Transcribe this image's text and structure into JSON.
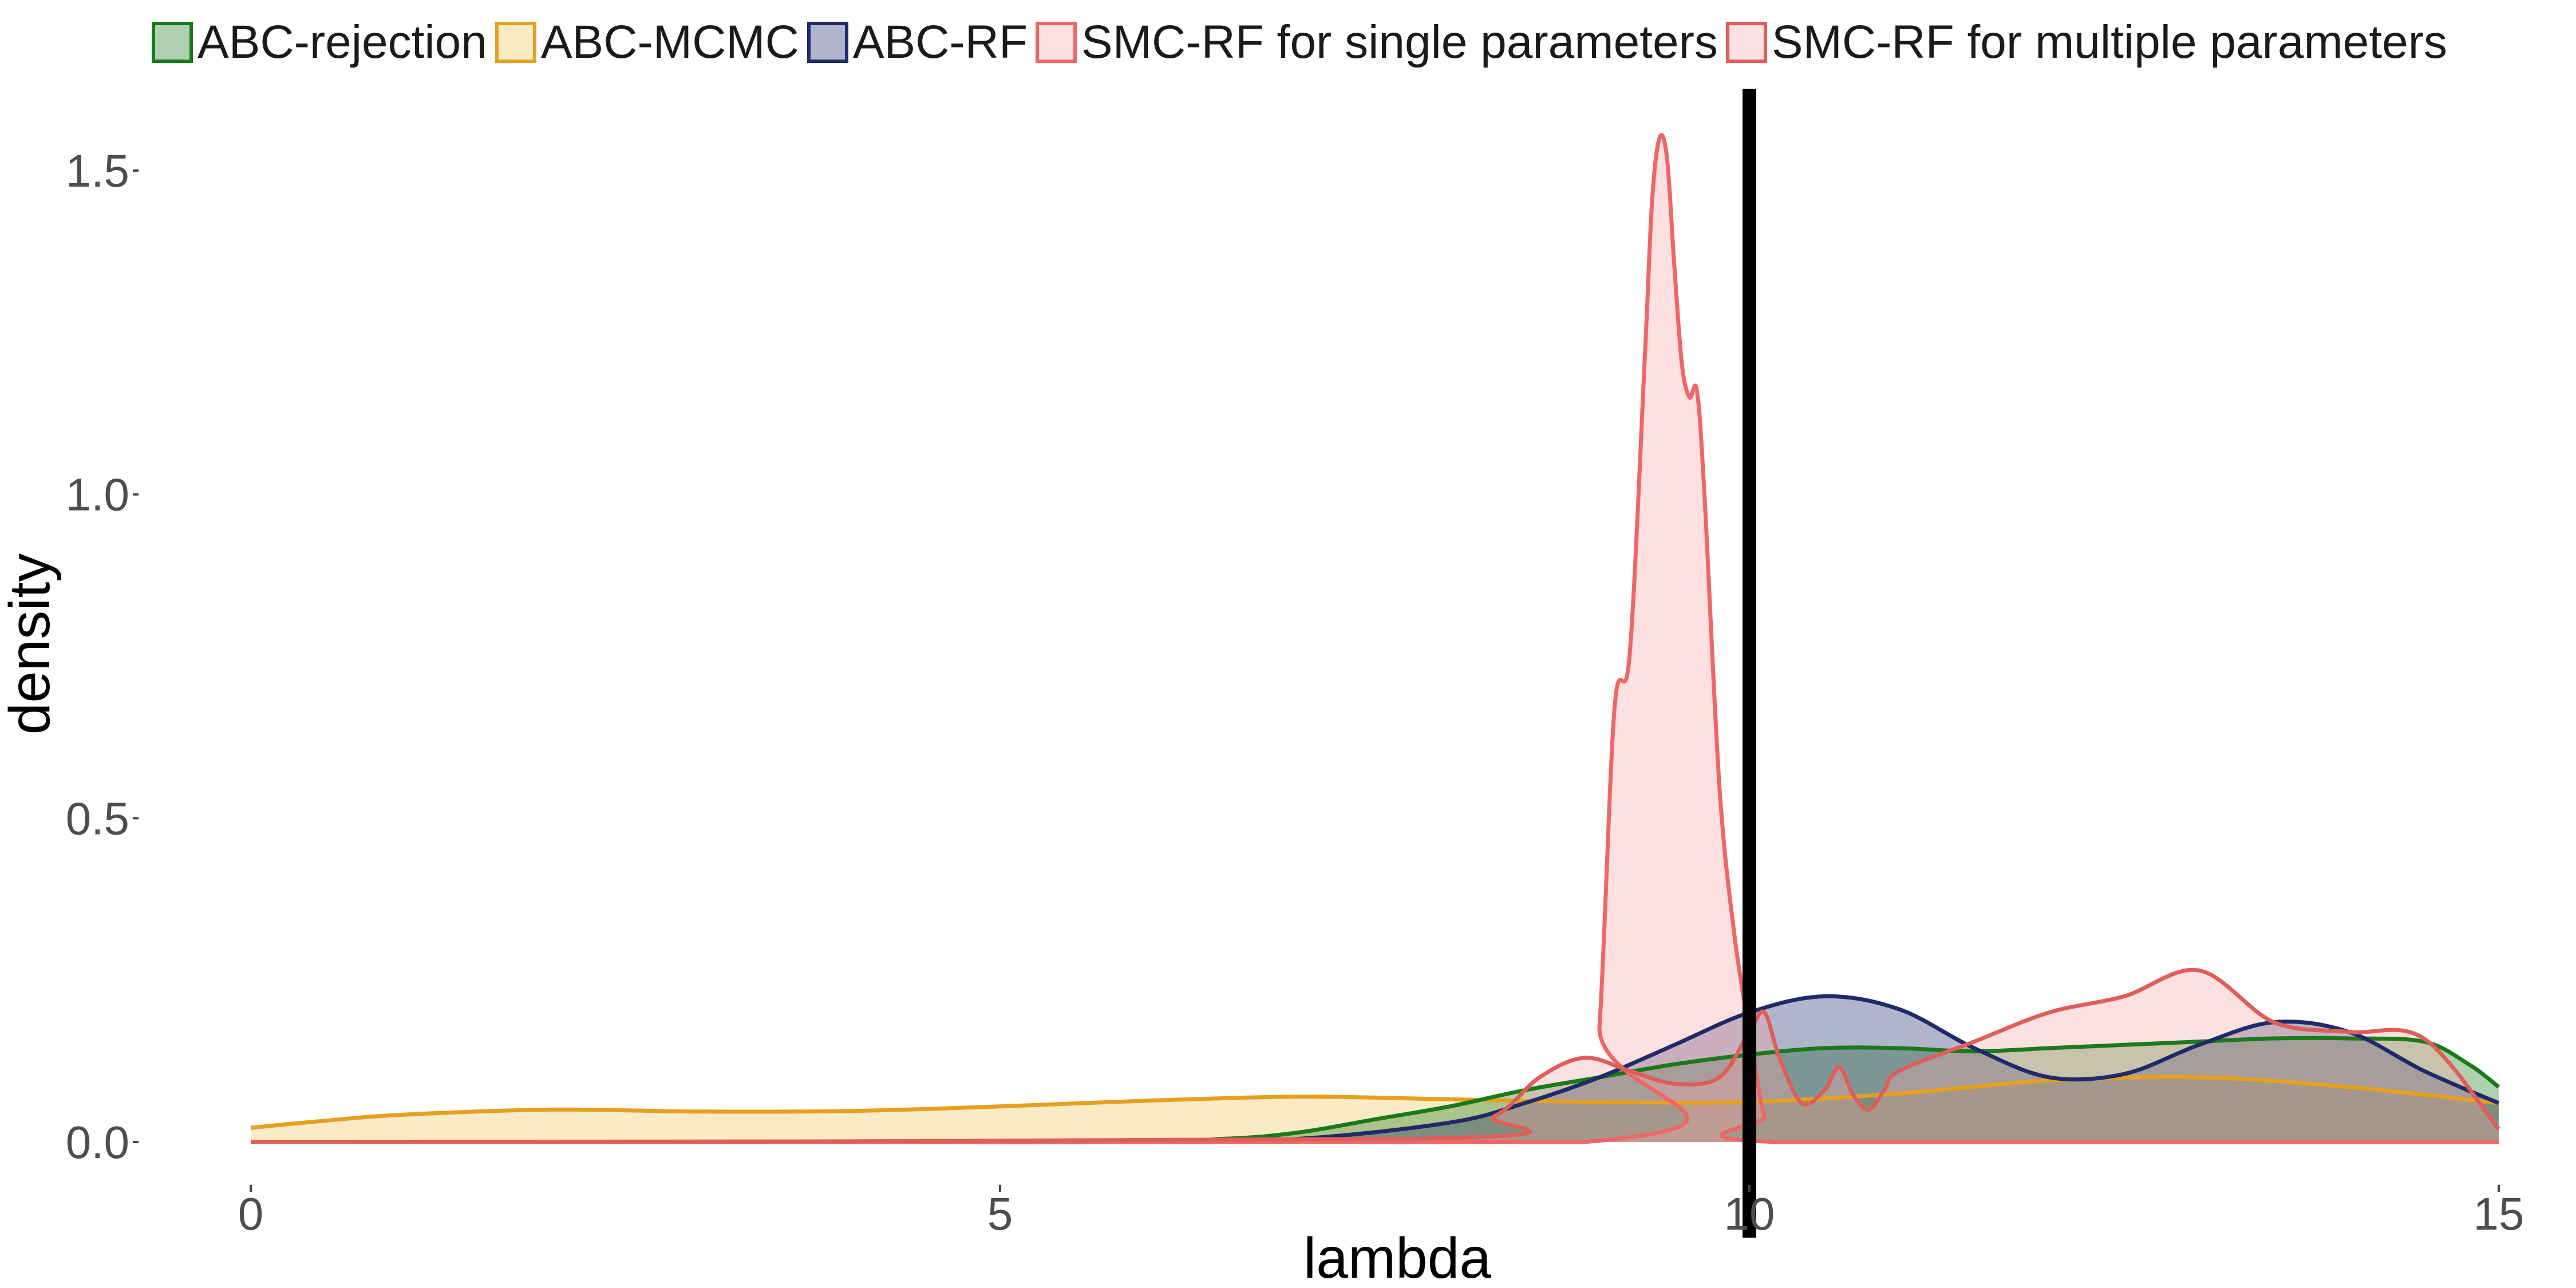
{
  "chart_data": {
    "type": "area",
    "xlabel": "lambda",
    "ylabel": "density",
    "xlim": [
      0,
      15
    ],
    "ylim": [
      0,
      1.6
    ],
    "xticks": [
      "0",
      "5",
      "10",
      "15"
    ],
    "yticks": [
      "0.0",
      "0.5",
      "1.0",
      "1.5"
    ],
    "grid": false,
    "legend_position": "top",
    "reference_line": {
      "x": 10,
      "color": "#000000"
    },
    "series": [
      {
        "name": "ABC-rejection",
        "stroke": "#1a7a1a",
        "fill": "#1a7a1a",
        "x": [
          0,
          5.5,
          6.5,
          7.0,
          7.5,
          8.0,
          8.5,
          9.0,
          9.5,
          10.0,
          10.5,
          11.0,
          11.5,
          12.0,
          12.5,
          13.0,
          13.5,
          14.0,
          14.5,
          14.8,
          15.0
        ],
        "y": [
          0,
          0,
          0.005,
          0.015,
          0.035,
          0.055,
          0.08,
          0.1,
          0.12,
          0.135,
          0.145,
          0.145,
          0.14,
          0.145,
          0.15,
          0.155,
          0.16,
          0.16,
          0.155,
          0.12,
          0.085
        ]
      },
      {
        "name": "ABC-MCMC",
        "stroke": "#e6a020",
        "fill": "#f2c45a",
        "x": [
          0,
          0.5,
          1.0,
          2.0,
          3.0,
          4.0,
          5.0,
          6.0,
          7.0,
          8.0,
          9.0,
          10.0,
          11.0,
          12.0,
          13.0,
          14.0,
          15.0
        ],
        "y": [
          0.022,
          0.033,
          0.042,
          0.05,
          0.047,
          0.048,
          0.055,
          0.064,
          0.07,
          0.066,
          0.062,
          0.062,
          0.075,
          0.095,
          0.1,
          0.085,
          0.06
        ]
      },
      {
        "name": "ABC-RF",
        "stroke": "#1f2a6b",
        "fill": "#1f2a6b",
        "x": [
          0,
          6.0,
          7.0,
          8.0,
          8.5,
          9.0,
          9.5,
          10.0,
          10.5,
          11.0,
          11.5,
          12.0,
          12.5,
          13.0,
          13.5,
          14.0,
          14.5,
          15.0
        ],
        "y": [
          0,
          0,
          0.005,
          0.03,
          0.06,
          0.1,
          0.15,
          0.2,
          0.225,
          0.205,
          0.145,
          0.1,
          0.105,
          0.15,
          0.185,
          0.17,
          0.11,
          0.06
        ]
      },
      {
        "name": "SMC-RF for single parameters",
        "stroke": "#ee6666",
        "fill": "#f8a7a5",
        "x": [
          0,
          8.9,
          9.0,
          9.1,
          9.2,
          9.3,
          9.35,
          9.4,
          9.45,
          9.5,
          9.55,
          9.6,
          9.65,
          9.7,
          9.8,
          9.9,
          10.0,
          10.05,
          10.1,
          10.2,
          15.0
        ],
        "y": [
          0,
          0,
          0.18,
          0.67,
          0.75,
          1.2,
          1.45,
          1.55,
          1.52,
          1.35,
          1.2,
          1.15,
          1.16,
          1.0,
          0.55,
          0.32,
          0.17,
          0.1,
          0.04,
          0,
          0
        ]
      },
      {
        "name": "SMC-RF for multiple parameters",
        "stroke": "#e05e5a",
        "fill": "#f4a9a6",
        "x": [
          0,
          7.8,
          8.3,
          8.6,
          8.9,
          9.2,
          9.5,
          9.8,
          10.0,
          10.1,
          10.2,
          10.35,
          10.5,
          10.6,
          10.7,
          10.8,
          10.9,
          11.0,
          11.5,
          12.0,
          12.5,
          13.0,
          13.5,
          14.0,
          14.5,
          15.0
        ],
        "y": [
          0,
          0.005,
          0.04,
          0.1,
          0.13,
          0.11,
          0.09,
          0.1,
          0.17,
          0.2,
          0.13,
          0.06,
          0.08,
          0.115,
          0.07,
          0.05,
          0.08,
          0.11,
          0.155,
          0.2,
          0.225,
          0.265,
          0.185,
          0.17,
          0.16,
          0.02
        ]
      }
    ]
  }
}
